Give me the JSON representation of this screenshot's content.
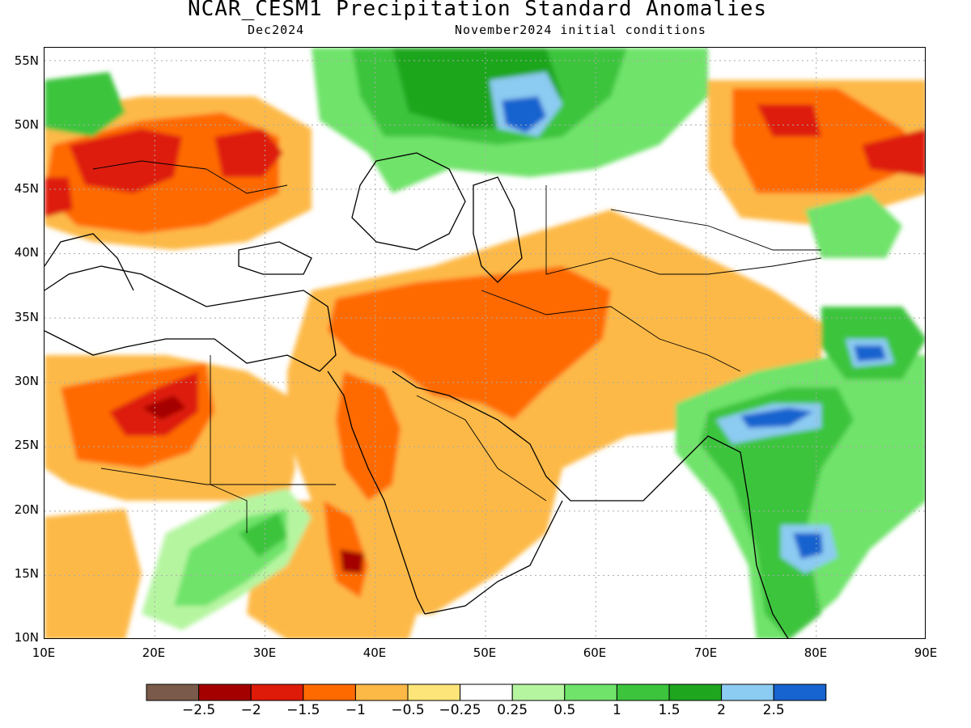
{
  "header": {
    "title": "NCAR_CESM1 Precipitation Standard Anomalies",
    "valid_month": "Dec2024",
    "initial_conditions": "November2024 initial conditions"
  },
  "map": {
    "lon_range": [
      10,
      90
    ],
    "lat_range": [
      10,
      56
    ],
    "lat_ticks": [
      "55N",
      "50N",
      "45N",
      "40N",
      "35N",
      "30N",
      "25N",
      "20N",
      "15N",
      "10N"
    ],
    "lon_ticks": [
      "10E",
      "20E",
      "30E",
      "40E",
      "50E",
      "60E",
      "70E",
      "80E",
      "90E"
    ]
  },
  "colorbar": {
    "colors": [
      "#7a5a4a",
      "#a40000",
      "#de1a08",
      "#ff6a00",
      "#fdb946",
      "#fde57a",
      "#ffffff",
      "#b6f5a0",
      "#6fe36a",
      "#3cc43c",
      "#1fa61f",
      "#8ccbf2",
      "#1763cf"
    ],
    "labels": [
      "−2.5",
      "−2",
      "−1.5",
      "−1",
      "−0.5",
      "−0.25",
      "0.25",
      "0.5",
      "1",
      "1.5",
      "2",
      "2.5"
    ]
  }
}
